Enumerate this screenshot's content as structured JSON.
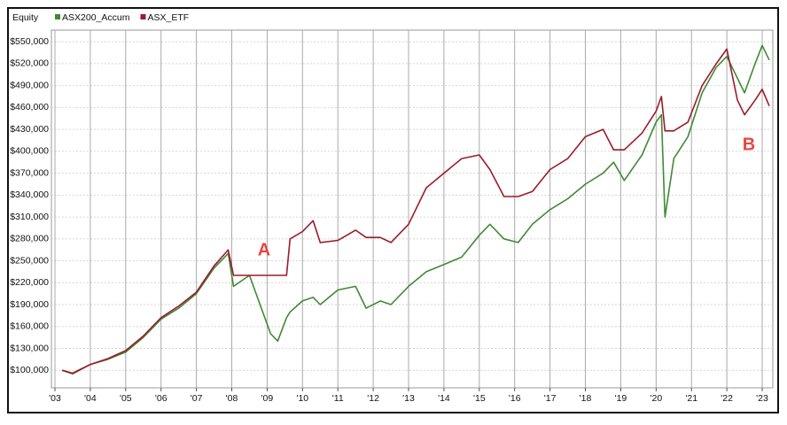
{
  "chart_data": {
    "type": "line",
    "ylabel": "Equity",
    "x": [
      2003.2,
      2003.5,
      2004,
      2004.5,
      2005,
      2005.5,
      2006,
      2006.5,
      2007,
      2007.5,
      2007.9,
      2008.05,
      2008.5,
      2008.8,
      2009.1,
      2009.3,
      2009.55,
      2009.65,
      2010,
      2010.3,
      2010.5,
      2011,
      2011.5,
      2011.8,
      2012.2,
      2012.5,
      2013,
      2013.5,
      2014,
      2014.5,
      2015,
      2015.3,
      2015.7,
      2016.1,
      2016.5,
      2017,
      2017.5,
      2018,
      2018.5,
      2018.8,
      2019.1,
      2019.6,
      2020,
      2020.15,
      2020.25,
      2020.5,
      2020.9,
      2021.3,
      2021.7,
      2022,
      2022.3,
      2022.5,
      2022.8,
      2023,
      2023.2
    ],
    "series": [
      {
        "name": "ASX200_Accum",
        "color": "#3f8a34",
        "values": [
          100000,
          95000,
          108000,
          115000,
          125000,
          145000,
          170000,
          185000,
          205000,
          240000,
          260000,
          215000,
          230000,
          190000,
          150000,
          140000,
          172000,
          180000,
          195000,
          200000,
          190000,
          210000,
          215000,
          185000,
          195000,
          190000,
          215000,
          235000,
          245000,
          255000,
          285000,
          300000,
          280000,
          275000,
          300000,
          320000,
          335000,
          355000,
          370000,
          385000,
          360000,
          395000,
          440000,
          450000,
          310000,
          390000,
          420000,
          480000,
          515000,
          530000,
          500000,
          480000,
          520000,
          545000,
          525000
        ]
      },
      {
        "name": "ASX_ETF",
        "color": "#9b1c2c",
        "values": [
          100000,
          96000,
          108000,
          116000,
          127000,
          147000,
          172000,
          188000,
          207000,
          243000,
          265000,
          230000,
          230000,
          230000,
          230000,
          230000,
          230000,
          280000,
          290000,
          305000,
          275000,
          278000,
          292000,
          282000,
          282000,
          275000,
          300000,
          350000,
          370000,
          390000,
          395000,
          375000,
          338000,
          338000,
          345000,
          375000,
          390000,
          420000,
          430000,
          402000,
          402000,
          425000,
          455000,
          475000,
          428000,
          428000,
          440000,
          490000,
          520000,
          540000,
          470000,
          450000,
          470000,
          485000,
          462000
        ]
      }
    ],
    "xlim": [
      2002.9,
      2023.3
    ],
    "xticks": [
      {
        "value": 2003,
        "label": "'03"
      },
      {
        "value": 2004,
        "label": "'04"
      },
      {
        "value": 2005,
        "label": "'05"
      },
      {
        "value": 2006,
        "label": "'06"
      },
      {
        "value": 2007,
        "label": "'07"
      },
      {
        "value": 2008,
        "label": "'08"
      },
      {
        "value": 2009,
        "label": "'09"
      },
      {
        "value": 2010,
        "label": "'10"
      },
      {
        "value": 2011,
        "label": "'11"
      },
      {
        "value": 2012,
        "label": "'12"
      },
      {
        "value": 2013,
        "label": "'13"
      },
      {
        "value": 2014,
        "label": "'14"
      },
      {
        "value": 2015,
        "label": "'15"
      },
      {
        "value": 2016,
        "label": "'16"
      },
      {
        "value": 2017,
        "label": "'17"
      },
      {
        "value": 2018,
        "label": "'18"
      },
      {
        "value": 2019,
        "label": "'19"
      },
      {
        "value": 2020,
        "label": "'20"
      },
      {
        "value": 2021,
        "label": "'21"
      },
      {
        "value": 2022,
        "label": "'22"
      },
      {
        "value": 2023,
        "label": "'23"
      }
    ],
    "ylim": [
      76000,
      566000
    ],
    "yticks": [
      {
        "value": 100000,
        "label": "$100,000"
      },
      {
        "value": 130000,
        "label": "$130,000"
      },
      {
        "value": 160000,
        "label": "$160,000"
      },
      {
        "value": 190000,
        "label": "$190,000"
      },
      {
        "value": 220000,
        "label": "$220,000"
      },
      {
        "value": 250000,
        "label": "$250,000"
      },
      {
        "value": 280000,
        "label": "$280,000"
      },
      {
        "value": 310000,
        "label": "$310,000"
      },
      {
        "value": 340000,
        "label": "$340,000"
      },
      {
        "value": 370000,
        "label": "$370,000"
      },
      {
        "value": 400000,
        "label": "$400,000"
      },
      {
        "value": 430000,
        "label": "$430,000"
      },
      {
        "value": 460000,
        "label": "$460,000"
      },
      {
        "value": 490000,
        "label": "$490,000"
      },
      {
        "value": 520000,
        "label": "$520,000"
      },
      {
        "value": 550000,
        "label": "$550,000"
      }
    ],
    "grid": true,
    "annotations": [
      "A",
      "B"
    ]
  }
}
